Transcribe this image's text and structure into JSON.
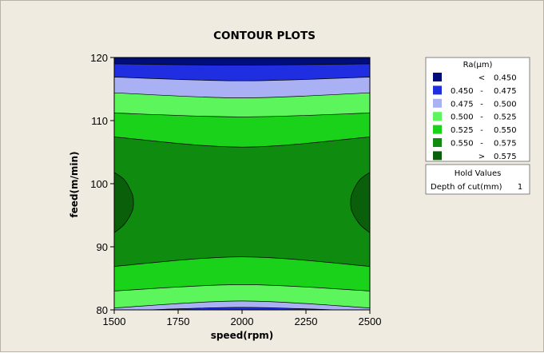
{
  "chart_data": {
    "type": "contour",
    "title": "CONTOUR PLOTS",
    "xlabel": "speed(rpm)",
    "ylabel": "feed(m/min)",
    "xlim": [
      1500,
      2500
    ],
    "ylim": [
      80,
      120
    ],
    "xticks": [
      "1500",
      "1750",
      "2000",
      "2250",
      "2500"
    ],
    "yticks": [
      "80",
      "90",
      "100",
      "110",
      "120"
    ],
    "xtick_values": [
      1500,
      1750,
      2000,
      2250,
      2500
    ],
    "ytick_values": [
      80,
      90,
      100,
      110,
      120
    ],
    "legend": {
      "title": "Ra(µm)",
      "placement": "right",
      "entries": [
        {
          "color": "#000d7a",
          "low": "",
          "sep": "<",
          "high": "0.450"
        },
        {
          "color": "#1e2ee0",
          "low": "0.450",
          "sep": "-",
          "high": "0.475"
        },
        {
          "color": "#aab0f4",
          "low": "0.475",
          "sep": "-",
          "high": "0.500"
        },
        {
          "color": "#5cf55c",
          "low": "0.500",
          "sep": "-",
          "high": "0.525"
        },
        {
          "color": "#19d219",
          "low": "0.525",
          "sep": "-",
          "high": "0.550"
        },
        {
          "color": "#0f8c0f",
          "low": "0.550",
          "sep": "-",
          "high": "0.575"
        },
        {
          "color": "#0a600a",
          "low": "",
          "sep": ">",
          "high": "0.575"
        }
      ]
    },
    "hold_values": {
      "title": "Hold Values",
      "label": "Depth of cut(mm)",
      "value": "1"
    },
    "contour_levels": [
      0.45,
      0.475,
      0.5,
      0.525,
      0.55,
      0.575
    ],
    "contours": [
      {
        "level": 0.45,
        "top": [
          [
            1500,
            119.0
          ],
          [
            2000,
            118.8
          ],
          [
            2500,
            119.0
          ]
        ]
      },
      {
        "level": 0.475,
        "top": [
          [
            1500,
            116.9
          ],
          [
            2000,
            116.3
          ],
          [
            2500,
            116.9
          ]
        ],
        "bottom": [
          [
            1500,
            79.8
          ],
          [
            1700,
            80.1
          ],
          [
            2000,
            80.4
          ],
          [
            2300,
            80.1
          ],
          [
            2500,
            79.8
          ]
        ]
      },
      {
        "level": 0.5,
        "top": [
          [
            1500,
            114.4
          ],
          [
            2000,
            113.6
          ],
          [
            2500,
            114.4
          ]
        ],
        "bottom": [
          [
            1500,
            80.3
          ],
          [
            2000,
            81.4
          ],
          [
            2500,
            80.3
          ]
        ]
      },
      {
        "level": 0.525,
        "top": [
          [
            1500,
            111.2
          ],
          [
            2000,
            110.6
          ],
          [
            2500,
            111.2
          ]
        ],
        "bottom": [
          [
            1500,
            83.0
          ],
          [
            2000,
            84.0
          ],
          [
            2500,
            83.0
          ]
        ]
      },
      {
        "level": 0.55,
        "top": [
          [
            1500,
            107.4
          ],
          [
            2000,
            105.8
          ],
          [
            2500,
            107.4
          ]
        ],
        "bottom": [
          [
            1500,
            86.9
          ],
          [
            2000,
            88.4
          ],
          [
            2500,
            86.9
          ]
        ]
      },
      {
        "level": 0.575,
        "regions": [
          [
            [
              1500,
              101.8
            ],
            [
              1540,
              100.6
            ],
            [
              1570,
              98.4
            ],
            [
              1575,
              97.0
            ],
            [
              1570,
              95.6
            ],
            [
              1540,
              93.6
            ],
            [
              1500,
              92.2
            ]
          ],
          [
            [
              2500,
              101.8
            ],
            [
              2460,
              100.6
            ],
            [
              2430,
              98.4
            ],
            [
              2425,
              97.0
            ],
            [
              2430,
              95.6
            ],
            [
              2460,
              93.6
            ],
            [
              2500,
              92.2
            ]
          ]
        ]
      }
    ],
    "grid": false
  }
}
